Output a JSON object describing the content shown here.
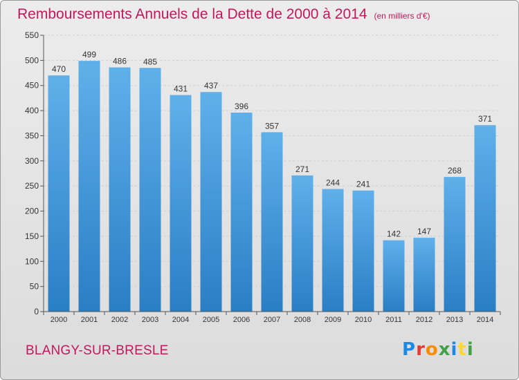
{
  "header": {
    "title": "Remboursements Annuels de la Dette de 2000 à 2014",
    "subtitle": "(en milliers d'€)"
  },
  "footer": {
    "commune": "BLANGY-SUR-BRESLE",
    "brand_letters": [
      "P",
      "r",
      "o",
      "x",
      "i",
      "t",
      "i"
    ],
    "brand_colors": [
      "#1e88e5",
      "#e53935",
      "#fb8c00",
      "#43a047",
      "#1e88e5",
      "#fdd835",
      "#43a047"
    ]
  },
  "colors": {
    "title": "#c2185b",
    "bar_top": "#5fb0ea",
    "bar_bottom": "#2a7ec4",
    "axis_text": "#333333",
    "grid": "#cfcfcf"
  },
  "chart_data": {
    "type": "bar",
    "title": "Remboursements Annuels de la Dette de 2000 à 2014",
    "subtitle": "(en milliers d'€)",
    "categories": [
      "2000",
      "2001",
      "2002",
      "2003",
      "2004",
      "2005",
      "2006",
      "2007",
      "2008",
      "2009",
      "2010",
      "2011",
      "2012",
      "2013",
      "2014"
    ],
    "values": [
      470,
      499,
      486,
      485,
      431,
      437,
      396,
      357,
      271,
      244,
      241,
      142,
      147,
      268,
      371
    ],
    "ylim": [
      0,
      550
    ],
    "yticks": [
      0,
      50,
      100,
      150,
      200,
      250,
      300,
      350,
      400,
      450,
      500,
      550
    ],
    "xlabel": "",
    "ylabel": "",
    "grid": true,
    "data_labels": true
  }
}
